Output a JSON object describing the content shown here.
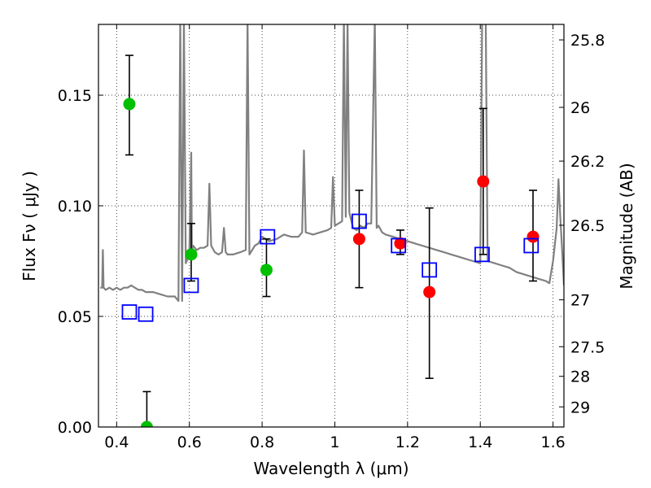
{
  "chart_data": {
    "type": "scatter",
    "title": "",
    "xlabel": "Wavelength  λ (μm)",
    "ylabel": "Flux  Fν  ( μJy )",
    "ylabel_right": "Magnitude (AB)",
    "xlim": [
      0.35,
      1.63
    ],
    "ylim": [
      0.0,
      0.182
    ],
    "grid": true,
    "x_ticks": [
      0.4,
      0.6,
      0.8,
      1.0,
      1.2,
      1.4,
      1.6
    ],
    "x_tick_labels": [
      "0.4",
      "0.6",
      "0.8",
      "1",
      "1.2",
      "1.4",
      "1.6"
    ],
    "y_ticks": [
      0.0,
      0.05,
      0.1,
      0.15
    ],
    "y_tick_labels": [
      "0.00",
      "0.05",
      "0.10",
      "0.15"
    ],
    "right_ticks": [
      {
        "label": "25.8",
        "flux": 0.175
      },
      {
        "label": "26",
        "flux": 0.1445
      },
      {
        "label": "26.2",
        "flux": 0.1202
      },
      {
        "label": "26.5",
        "flux": 0.0912
      },
      {
        "label": "27",
        "flux": 0.0575
      },
      {
        "label": "27.5",
        "flux": 0.0363
      },
      {
        "label": "28",
        "flux": 0.0229
      },
      {
        "label": "29",
        "flux": 0.0091
      }
    ],
    "series": [
      {
        "name": "Model SED",
        "kind": "line",
        "color": "#808080",
        "x": [
          0.355,
          0.36,
          0.362,
          0.364,
          0.37,
          0.38,
          0.39,
          0.4,
          0.41,
          0.42,
          0.43,
          0.44,
          0.45,
          0.46,
          0.47,
          0.48,
          0.5,
          0.52,
          0.54,
          0.56,
          0.57,
          0.575,
          0.58,
          0.585,
          0.59,
          0.595,
          0.6,
          0.605,
          0.607,
          0.61,
          0.62,
          0.63,
          0.64,
          0.65,
          0.655,
          0.66,
          0.67,
          0.68,
          0.69,
          0.695,
          0.7,
          0.705,
          0.72,
          0.74,
          0.755,
          0.76,
          0.765,
          0.78,
          0.79,
          0.8,
          0.81,
          0.82,
          0.84,
          0.86,
          0.88,
          0.9,
          0.91,
          0.915,
          0.92,
          0.94,
          0.96,
          0.98,
          0.99,
          0.995,
          1.0,
          1.01,
          1.02,
          1.025,
          1.03,
          1.035,
          1.04,
          1.05,
          1.06,
          1.07,
          1.08,
          1.09,
          1.1,
          1.11,
          1.115,
          1.12,
          1.13,
          1.14,
          1.16,
          1.18,
          1.2,
          1.22,
          1.24,
          1.26,
          1.28,
          1.3,
          1.32,
          1.34,
          1.36,
          1.38,
          1.4,
          1.405,
          1.41,
          1.415,
          1.42,
          1.44,
          1.46,
          1.48,
          1.5,
          1.52,
          1.54,
          1.56,
          1.58,
          1.59,
          1.6,
          1.61,
          1.615,
          1.62,
          1.625,
          1.63
        ],
        "y": [
          0.063,
          0.063,
          0.08,
          0.063,
          0.062,
          0.063,
          0.062,
          0.063,
          0.062,
          0.063,
          0.063,
          0.064,
          0.063,
          0.062,
          0.062,
          0.061,
          0.061,
          0.06,
          0.059,
          0.059,
          0.057,
          0.185,
          0.057,
          0.185,
          0.074,
          0.076,
          0.079,
          0.124,
          0.079,
          0.082,
          0.08,
          0.081,
          0.081,
          0.082,
          0.11,
          0.082,
          0.079,
          0.078,
          0.079,
          0.09,
          0.079,
          0.078,
          0.078,
          0.079,
          0.08,
          0.185,
          0.078,
          0.082,
          0.083,
          0.086,
          0.085,
          0.084,
          0.085,
          0.087,
          0.086,
          0.086,
          0.088,
          0.125,
          0.088,
          0.087,
          0.088,
          0.089,
          0.09,
          0.113,
          0.091,
          0.092,
          0.093,
          0.185,
          0.095,
          0.185,
          0.097,
          0.09,
          0.089,
          0.091,
          0.09,
          0.092,
          0.092,
          0.185,
          0.09,
          0.091,
          0.088,
          0.087,
          0.086,
          0.085,
          0.084,
          0.083,
          0.082,
          0.081,
          0.08,
          0.079,
          0.078,
          0.077,
          0.076,
          0.075,
          0.074,
          0.185,
          0.185,
          0.185,
          0.075,
          0.074,
          0.073,
          0.072,
          0.07,
          0.069,
          0.068,
          0.067,
          0.066,
          0.065,
          0.075,
          0.09,
          0.112,
          0.095,
          0.08,
          0.064
        ]
      },
      {
        "name": "Green detections",
        "kind": "points",
        "color": "#00c000",
        "x": [
          0.435,
          0.483,
          0.605,
          0.812
        ],
        "y": [
          0.146,
          0.0,
          0.078,
          0.071
        ],
        "yerr_lower": [
          0.123,
          0.0,
          0.066,
          0.059
        ],
        "yerr_upper": [
          0.168,
          0.016,
          0.092,
          0.085
        ]
      },
      {
        "name": "Red detections",
        "kind": "points",
        "color": "#ff0000",
        "x": [
          1.067,
          1.18,
          1.26,
          1.408,
          1.545
        ],
        "y": [
          0.085,
          0.083,
          0.061,
          0.111,
          0.086
        ],
        "yerr_lower": [
          0.063,
          0.078,
          0.022,
          0.078,
          0.066
        ],
        "yerr_upper": [
          0.107,
          0.089,
          0.099,
          0.144,
          0.107
        ]
      },
      {
        "name": "Model photometry",
        "kind": "open-squares",
        "color": "#0000ff",
        "x": [
          0.435,
          0.48,
          0.605,
          0.815,
          1.067,
          1.175,
          1.26,
          1.405,
          1.54
        ],
        "y": [
          0.052,
          0.051,
          0.064,
          0.086,
          0.093,
          0.082,
          0.071,
          0.078,
          0.082
        ]
      }
    ]
  }
}
